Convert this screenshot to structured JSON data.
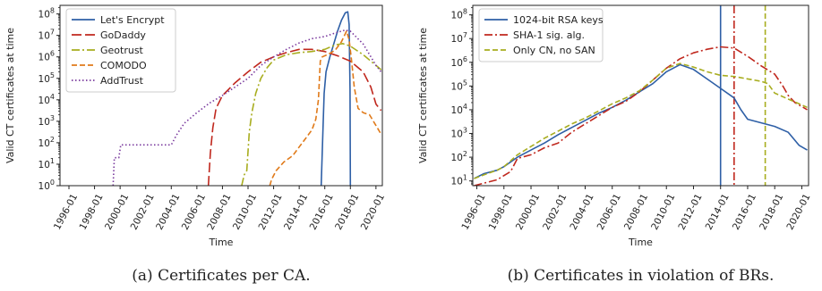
{
  "chart_data": [
    {
      "type": "line",
      "caption": "(a) Certificates per CA.",
      "xlabel": "Time",
      "ylabel": "Valid CT certificates at time",
      "xlim": [
        1995.3,
        2020.5
      ],
      "ylim_exp": [
        0,
        8.4
      ],
      "yscale": "log",
      "grid": false,
      "legend_position": "top-left",
      "x_ticks": [
        1996,
        1998,
        2000,
        2002,
        2004,
        2006,
        2008,
        2010,
        2012,
        2014,
        2016,
        2018,
        2020
      ],
      "x_tick_labels": [
        "1996-01",
        "1998-01",
        "2000-01",
        "2002-01",
        "2004-01",
        "2006-01",
        "2008-01",
        "2010-01",
        "2012-01",
        "2014-01",
        "2016-01",
        "2018-01",
        "2020-01"
      ],
      "y_ticks": [
        0,
        1,
        2,
        3,
        4,
        5,
        6,
        7,
        8
      ],
      "y_tick_labels": [
        "10^0",
        "10^1",
        "10^2",
        "10^3",
        "10^4",
        "10^5",
        "10^6",
        "10^7",
        "10^8"
      ],
      "series": [
        {
          "name": "Let's Encrypt",
          "color": "#2e5fa6",
          "dash": "solid",
          "points": [
            [
              2015.72,
              0
            ],
            [
              2015.85,
              2.5
            ],
            [
              2015.95,
              4.3
            ],
            [
              2016.1,
              5.3
            ],
            [
              2016.4,
              6.0
            ],
            [
              2016.7,
              6.6
            ],
            [
              2017.0,
              7.2
            ],
            [
              2017.3,
              7.7
            ],
            [
              2017.6,
              8.05
            ],
            [
              2017.8,
              8.1
            ],
            [
              2017.9,
              7.5
            ],
            [
              2017.97,
              4.5
            ],
            [
              2018.0,
              0
            ]
          ]
        },
        {
          "name": "GoDaddy",
          "color": "#c0281e",
          "dash": "longdash",
          "points": [
            [
              2006.9,
              0
            ],
            [
              2007.05,
              1.5
            ],
            [
              2007.25,
              2.7
            ],
            [
              2007.5,
              3.6
            ],
            [
              2008.0,
              4.2
            ],
            [
              2009.0,
              4.8
            ],
            [
              2010.0,
              5.3
            ],
            [
              2011.0,
              5.75
            ],
            [
              2012.0,
              6.0
            ],
            [
              2013.0,
              6.2
            ],
            [
              2014.0,
              6.35
            ],
            [
              2015.0,
              6.35
            ],
            [
              2016.0,
              6.25
            ],
            [
              2017.0,
              6.05
            ],
            [
              2018.0,
              5.8
            ],
            [
              2019.0,
              5.3
            ],
            [
              2019.6,
              4.6
            ],
            [
              2020.0,
              3.8
            ],
            [
              2020.4,
              3.5
            ]
          ]
        },
        {
          "name": "Geotrust",
          "color": "#a8ad1f",
          "dash": "dashdot",
          "points": [
            [
              2009.5,
              0
            ],
            [
              2009.7,
              0.5
            ],
            [
              2009.9,
              0.7
            ],
            [
              2010.1,
              2.5
            ],
            [
              2010.3,
              3.4
            ],
            [
              2010.6,
              4.3
            ],
            [
              2011.0,
              5.0
            ],
            [
              2011.5,
              5.5
            ],
            [
              2012.0,
              5.85
            ],
            [
              2013.0,
              6.1
            ],
            [
              2014.0,
              6.2
            ],
            [
              2015.0,
              6.25
            ],
            [
              2016.0,
              6.35
            ],
            [
              2016.8,
              6.55
            ],
            [
              2017.4,
              6.62
            ],
            [
              2018.0,
              6.5
            ],
            [
              2019.0,
              6.1
            ],
            [
              2020.0,
              5.6
            ],
            [
              2020.4,
              5.4
            ]
          ]
        },
        {
          "name": "COMODO",
          "color": "#e07a1a",
          "dash": "dash",
          "points": [
            [
              2011.7,
              0
            ],
            [
              2011.85,
              0.3
            ],
            [
              2012.2,
              0.7
            ],
            [
              2012.8,
              1.1
            ],
            [
              2013.5,
              1.4
            ],
            [
              2014.0,
              1.8
            ],
            [
              2014.5,
              2.2
            ],
            [
              2015.0,
              2.6
            ],
            [
              2015.3,
              3.1
            ],
            [
              2015.5,
              4.0
            ],
            [
              2015.65,
              5.8
            ],
            [
              2015.8,
              6.0
            ],
            [
              2016.2,
              6.1
            ],
            [
              2016.8,
              6.3
            ],
            [
              2017.3,
              6.7
            ],
            [
              2017.7,
              7.2
            ],
            [
              2017.9,
              6.8
            ],
            [
              2018.1,
              5.8
            ],
            [
              2018.3,
              4.6
            ],
            [
              2018.6,
              3.6
            ],
            [
              2019.0,
              3.4
            ],
            [
              2019.5,
              3.3
            ],
            [
              2020.0,
              2.8
            ],
            [
              2020.4,
              2.4
            ]
          ]
        },
        {
          "name": "AddTrust",
          "color": "#7a3a9e",
          "dash": "dotted",
          "points": [
            [
              1999.45,
              0
            ],
            [
              1999.55,
              1.3
            ],
            [
              1999.9,
              1.3
            ],
            [
              2000.05,
              1.9
            ],
            [
              2004.0,
              1.9
            ],
            [
              2004.4,
              2.35
            ],
            [
              2005.0,
              2.9
            ],
            [
              2006.0,
              3.4
            ],
            [
              2007.0,
              3.85
            ],
            [
              2008.0,
              4.2
            ],
            [
              2009.0,
              4.6
            ],
            [
              2010.0,
              5.0
            ],
            [
              2011.0,
              5.6
            ],
            [
              2012.0,
              6.0
            ],
            [
              2013.0,
              6.35
            ],
            [
              2014.0,
              6.65
            ],
            [
              2015.0,
              6.85
            ],
            [
              2016.0,
              6.95
            ],
            [
              2017.0,
              7.15
            ],
            [
              2017.6,
              7.25
            ],
            [
              2018.0,
              7.2
            ],
            [
              2019.0,
              6.6
            ],
            [
              2020.0,
              5.6
            ],
            [
              2020.4,
              5.3
            ]
          ]
        }
      ]
    },
    {
      "type": "line",
      "caption": "(b) Certificates in violation of BRs.",
      "xlabel": "Time",
      "ylabel": "Valid CT certificates at time",
      "xlim": [
        1995.7,
        2020.5
      ],
      "ylim_exp": [
        0.8,
        8.4
      ],
      "yscale": "log",
      "grid": false,
      "legend_position": "top-left",
      "x_ticks": [
        1996,
        1998,
        2000,
        2002,
        2004,
        2006,
        2008,
        2010,
        2012,
        2014,
        2016,
        2018,
        2020
      ],
      "x_tick_labels": [
        "1996-01",
        "1998-01",
        "2000-01",
        "2002-01",
        "2004-01",
        "2006-01",
        "2008-01",
        "2010-01",
        "2012-01",
        "2014-01",
        "2016-01",
        "2018-01",
        "2020-01"
      ],
      "y_ticks": [
        1,
        2,
        3,
        4,
        5,
        6,
        7,
        8
      ],
      "y_tick_labels": [
        "10^1",
        "10^2",
        "10^3",
        "10^4",
        "10^5",
        "10^6",
        "10^7",
        "10^8"
      ],
      "vlines": [
        {
          "x": 2014.0,
          "color": "#2e5fa6",
          "dash": "solid"
        },
        {
          "x": 2015.0,
          "color": "#c0281e",
          "dash": "dashdot"
        },
        {
          "x": 2017.3,
          "color": "#a8ad1f",
          "dash": "dash"
        }
      ],
      "series": [
        {
          "name": "1024-bit RSA keys",
          "color": "#2e5fa6",
          "dash": "solid",
          "points": [
            [
              1995.8,
              1.1
            ],
            [
              1996.5,
              1.3
            ],
            [
              1997.5,
              1.45
            ],
            [
              1998.0,
              1.6
            ],
            [
              1999.0,
              2.0
            ],
            [
              2000.0,
              2.3
            ],
            [
              2001.0,
              2.6
            ],
            [
              2002.0,
              2.95
            ],
            [
              2003.0,
              3.25
            ],
            [
              2004.0,
              3.55
            ],
            [
              2005.0,
              3.85
            ],
            [
              2006.0,
              4.1
            ],
            [
              2007.0,
              4.4
            ],
            [
              2008.0,
              4.75
            ],
            [
              2009.0,
              5.1
            ],
            [
              2010.0,
              5.6
            ],
            [
              2011.0,
              5.9
            ],
            [
              2012.0,
              5.7
            ],
            [
              2013.0,
              5.3
            ],
            [
              2014.0,
              4.9
            ],
            [
              2015.0,
              4.5
            ],
            [
              2015.5,
              4.0
            ],
            [
              2016.0,
              3.6
            ],
            [
              2017.0,
              3.45
            ],
            [
              2018.0,
              3.3
            ],
            [
              2019.0,
              3.05
            ],
            [
              2019.8,
              2.5
            ],
            [
              2020.4,
              2.3
            ]
          ]
        },
        {
          "name": "SHA-1 sig. alg.",
          "color": "#c0281e",
          "dash": "dashdot",
          "points": [
            [
              1995.8,
              0.8
            ],
            [
              1996.5,
              0.9
            ],
            [
              1997.5,
              1.05
            ],
            [
              1998.5,
              1.4
            ],
            [
              1999.0,
              1.95
            ],
            [
              2000.0,
              2.1
            ],
            [
              2001.0,
              2.4
            ],
            [
              2002.0,
              2.6
            ],
            [
              2003.0,
              3.05
            ],
            [
              2004.0,
              3.4
            ],
            [
              2005.0,
              3.75
            ],
            [
              2006.0,
              4.1
            ],
            [
              2007.0,
              4.35
            ],
            [
              2008.0,
              4.75
            ],
            [
              2009.0,
              5.25
            ],
            [
              2010.0,
              5.75
            ],
            [
              2011.0,
              6.15
            ],
            [
              2012.0,
              6.4
            ],
            [
              2013.0,
              6.55
            ],
            [
              2014.0,
              6.65
            ],
            [
              2015.0,
              6.6
            ],
            [
              2016.0,
              6.25
            ],
            [
              2017.0,
              5.85
            ],
            [
              2018.0,
              5.5
            ],
            [
              2018.6,
              5.0
            ],
            [
              2019.0,
              4.6
            ],
            [
              2019.5,
              4.3
            ],
            [
              2020.4,
              4.0
            ]
          ]
        },
        {
          "name": "Only CN, no SAN",
          "color": "#a8ad1f",
          "dash": "dash",
          "points": [
            [
              1995.8,
              1.1
            ],
            [
              1996.5,
              1.25
            ],
            [
              1997.5,
              1.45
            ],
            [
              1998.0,
              1.6
            ],
            [
              1999.0,
              2.1
            ],
            [
              2000.0,
              2.45
            ],
            [
              2001.0,
              2.8
            ],
            [
              2002.0,
              3.1
            ],
            [
              2003.0,
              3.4
            ],
            [
              2004.0,
              3.65
            ],
            [
              2005.0,
              3.95
            ],
            [
              2006.0,
              4.25
            ],
            [
              2007.0,
              4.5
            ],
            [
              2008.0,
              4.8
            ],
            [
              2009.0,
              5.25
            ],
            [
              2010.0,
              5.75
            ],
            [
              2011.0,
              5.95
            ],
            [
              2012.0,
              5.8
            ],
            [
              2013.0,
              5.6
            ],
            [
              2014.0,
              5.45
            ],
            [
              2015.0,
              5.4
            ],
            [
              2016.0,
              5.3
            ],
            [
              2017.0,
              5.2
            ],
            [
              2017.5,
              5.1
            ],
            [
              2018.0,
              4.7
            ],
            [
              2019.0,
              4.45
            ],
            [
              2020.0,
              4.2
            ],
            [
              2020.4,
              4.1
            ]
          ]
        }
      ]
    }
  ]
}
